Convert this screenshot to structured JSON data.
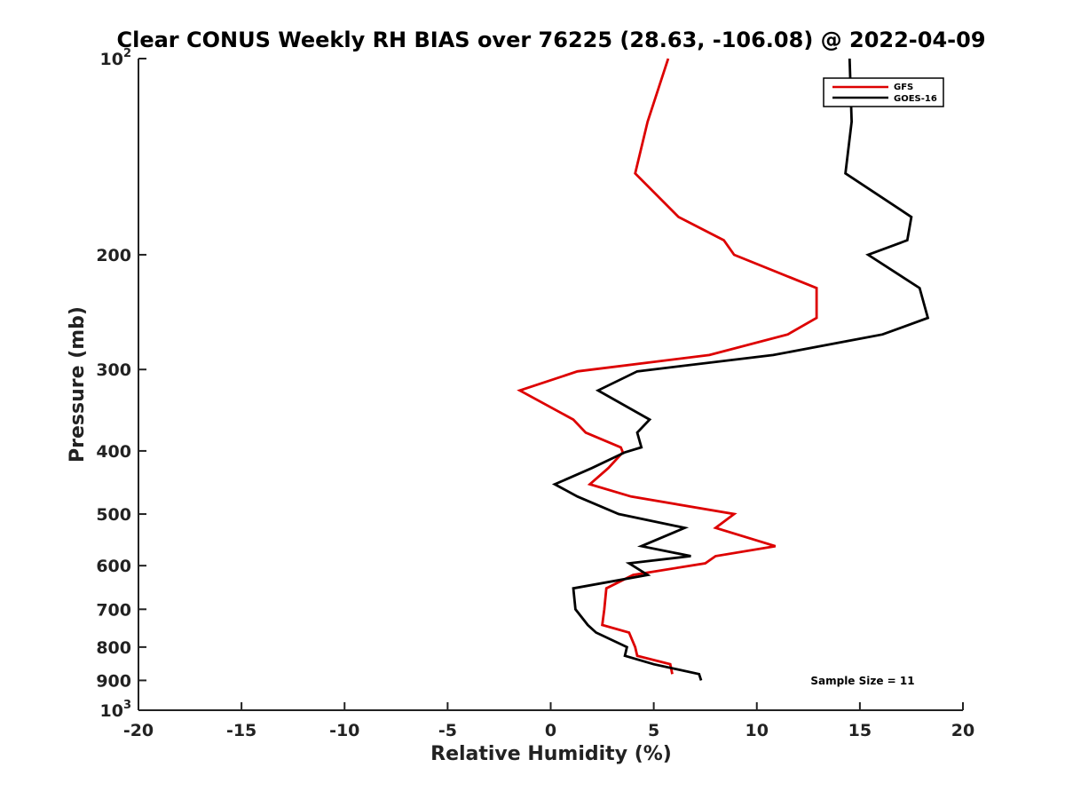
{
  "chart_data": {
    "type": "line",
    "title": "Clear CONUS Weekly RH BIAS over 76225 (28.63, -106.08) @ 2022-04-09",
    "xlabel": "Relative Humidity (%)",
    "ylabel": "Pressure (mb)",
    "xlim": [
      -20,
      20
    ],
    "ylim": [
      100,
      1000
    ],
    "yscale": "log",
    "y_reversed": true,
    "grid": false,
    "legend_position": "top-right",
    "xticks": [
      -20,
      -15,
      -10,
      -5,
      0,
      5,
      10,
      15,
      20
    ],
    "xtick_labels": [
      "-20",
      "-15",
      "-10",
      "-5",
      "0",
      "5",
      "10",
      "15",
      "20"
    ],
    "yticks": [
      100,
      200,
      300,
      400,
      500,
      600,
      700,
      800,
      900,
      1000
    ],
    "ytick_labels": [
      {
        "base": "10",
        "sup": "2"
      },
      {
        "base": "200",
        "sup": ""
      },
      {
        "base": "300",
        "sup": ""
      },
      {
        "base": "400",
        "sup": ""
      },
      {
        "base": "500",
        "sup": ""
      },
      {
        "base": "600",
        "sup": ""
      },
      {
        "base": "700",
        "sup": ""
      },
      {
        "base": "800",
        "sup": ""
      },
      {
        "base": "900",
        "sup": ""
      },
      {
        "base": "10",
        "sup": "3"
      }
    ],
    "annotation": "Sample Size = 11",
    "series": [
      {
        "name": "GFS",
        "color": "#dd0000",
        "points": [
          [
            5.7,
            100
          ],
          [
            4.7,
            125
          ],
          [
            4.1,
            150
          ],
          [
            6.2,
            175
          ],
          [
            8.4,
            190
          ],
          [
            8.9,
            200
          ],
          [
            12.9,
            225
          ],
          [
            12.9,
            250
          ],
          [
            11.5,
            265
          ],
          [
            7.7,
            285
          ],
          [
            1.3,
            302
          ],
          [
            -1.5,
            323
          ],
          [
            1.1,
            358
          ],
          [
            1.7,
            375
          ],
          [
            3.4,
            395
          ],
          [
            3.5,
            402
          ],
          [
            2.8,
            425
          ],
          [
            1.9,
            450
          ],
          [
            3.9,
            470
          ],
          [
            8.9,
            500
          ],
          [
            8.0,
            525
          ],
          [
            10.9,
            560
          ],
          [
            8.0,
            580
          ],
          [
            7.5,
            595
          ],
          [
            4.0,
            620
          ],
          [
            2.7,
            650
          ],
          [
            2.6,
            700
          ],
          [
            2.5,
            740
          ],
          [
            3.8,
            760
          ],
          [
            4.1,
            800
          ],
          [
            4.2,
            825
          ],
          [
            5.8,
            850
          ],
          [
            5.9,
            880
          ]
        ]
      },
      {
        "name": "GOES-16",
        "color": "#000000",
        "points": [
          [
            14.5,
            100
          ],
          [
            14.6,
            125
          ],
          [
            14.3,
            150
          ],
          [
            17.5,
            175
          ],
          [
            17.3,
            190
          ],
          [
            15.4,
            200
          ],
          [
            17.9,
            225
          ],
          [
            18.3,
            250
          ],
          [
            16.1,
            265
          ],
          [
            10.8,
            285
          ],
          [
            4.2,
            302
          ],
          [
            2.3,
            323
          ],
          [
            4.8,
            358
          ],
          [
            4.2,
            375
          ],
          [
            4.4,
            395
          ],
          [
            3.6,
            402
          ],
          [
            2.0,
            425
          ],
          [
            0.2,
            450
          ],
          [
            1.3,
            470
          ],
          [
            3.3,
            500
          ],
          [
            6.5,
            525
          ],
          [
            4.4,
            560
          ],
          [
            6.8,
            580
          ],
          [
            3.8,
            595
          ],
          [
            4.7,
            620
          ],
          [
            1.1,
            650
          ],
          [
            1.2,
            700
          ],
          [
            1.8,
            740
          ],
          [
            2.2,
            760
          ],
          [
            3.7,
            800
          ],
          [
            3.6,
            825
          ],
          [
            5.0,
            850
          ],
          [
            7.2,
            880
          ],
          [
            7.3,
            900
          ]
        ]
      }
    ]
  }
}
